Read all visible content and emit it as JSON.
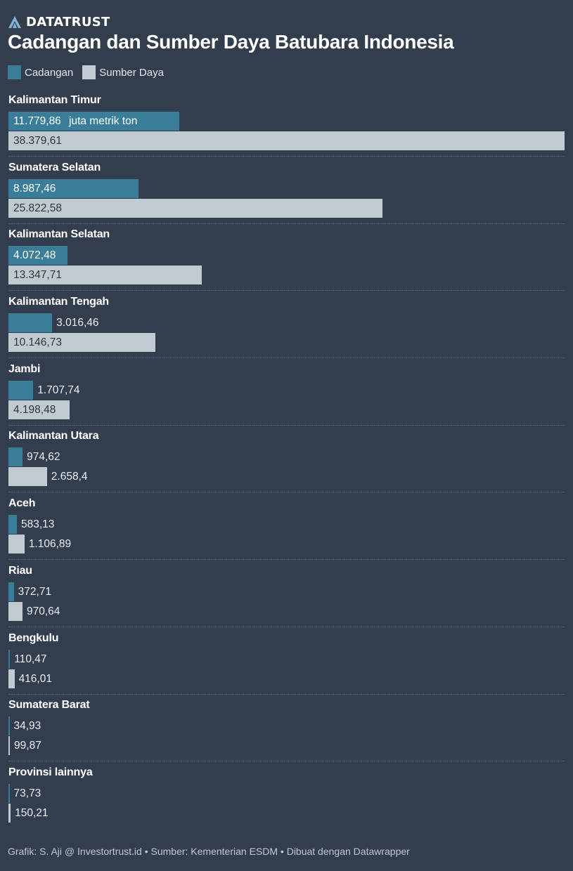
{
  "brand": {
    "name": "DATATRUST",
    "icon": "datatrust-logo-icon"
  },
  "title": "Cadangan dan Sumber Daya Batubara Indonesia",
  "legend": [
    {
      "label": "Cadangan",
      "color": "#3a7d98"
    },
    {
      "label": "Sumber Daya",
      "color": "#bfcbd0"
    }
  ],
  "unit_label": "juta metrik ton",
  "footer": "Grafik: S. Aji @ Investortrust.id • Sumber: Kementerian ESDM • Dibuat dengan Datawrapper",
  "rows": [
    {
      "label": "Kalimantan Timur",
      "cadangan": "11.779,86",
      "sumber": "38.379,61"
    },
    {
      "label": "Sumatera Selatan",
      "cadangan": "8.987,46",
      "sumber": "25.822,58"
    },
    {
      "label": "Kalimantan Selatan",
      "cadangan": "4.072,48",
      "sumber": "13.347,71"
    },
    {
      "label": "Kalimantan Tengah",
      "cadangan": "3.016,46",
      "sumber": "10.146,73"
    },
    {
      "label": "Jambi",
      "cadangan": "1.707,74",
      "sumber": "4.198,48"
    },
    {
      "label": "Kalimantan Utara",
      "cadangan": "974,62",
      "sumber": "2.658,4"
    },
    {
      "label": "Aceh",
      "cadangan": "583,13",
      "sumber": "1.106,89"
    },
    {
      "label": "Riau",
      "cadangan": "372,71",
      "sumber": "970,64"
    },
    {
      "label": "Bengkulu",
      "cadangan": "110,47",
      "sumber": "416,01"
    },
    {
      "label": "Sumatera Barat",
      "cadangan": "34,93",
      "sumber": "99,87"
    },
    {
      "label": "Provinsi lainnya",
      "cadangan": "73,73",
      "sumber": "150,21"
    }
  ],
  "chart_data": {
    "type": "bar",
    "orientation": "horizontal",
    "title": "Cadangan dan Sumber Daya Batubara Indonesia",
    "unit": "juta metrik ton",
    "categories": [
      "Kalimantan Timur",
      "Sumatera Selatan",
      "Kalimantan Selatan",
      "Kalimantan Tengah",
      "Jambi",
      "Kalimantan Utara",
      "Aceh",
      "Riau",
      "Bengkulu",
      "Sumatera Barat",
      "Provinsi lainnya"
    ],
    "series": [
      {
        "name": "Cadangan",
        "color": "#3a7d98",
        "values": [
          11779.86,
          8987.46,
          4072.48,
          3016.46,
          1707.74,
          974.62,
          583.13,
          372.71,
          110.47,
          34.93,
          73.73
        ]
      },
      {
        "name": "Sumber Daya",
        "color": "#bfcbd0",
        "values": [
          38379.61,
          25822.58,
          13347.71,
          10146.73,
          4198.48,
          2658.4,
          1106.89,
          970.64,
          416.01,
          99.87,
          150.21
        ]
      }
    ],
    "xlabel": "",
    "ylabel": "",
    "xlim": [
      0,
      38379.61
    ],
    "grid": false,
    "legend_position": "top-left",
    "source": "Kementerian ESDM"
  }
}
